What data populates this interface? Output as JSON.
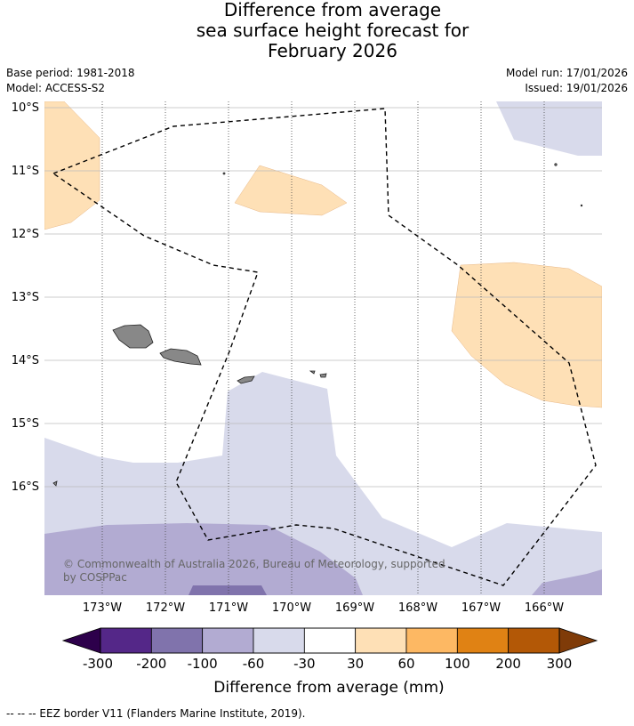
{
  "title": {
    "line1": "Difference from average",
    "line2": "sea surface height forecast for",
    "line3": "February 2026"
  },
  "meta": {
    "base_period": "Base period: 1981-2018",
    "model": "Model: ACCESS-S2",
    "model_run": "Model run: 17/01/2026",
    "issued": "Issued: 19/01/2026"
  },
  "map": {
    "lat_labels": [
      "10°S",
      "11°S",
      "12°S",
      "13°S",
      "14°S",
      "15°S",
      "16°S"
    ],
    "lon_labels": [
      "173°W",
      "172°W",
      "171°W",
      "170°W",
      "169°W",
      "168°W",
      "167°W",
      "166°W"
    ],
    "copyright": "© Commonwealth of Australia 2026, Bureau of Meteorology, supported by COSPPac",
    "copyright_line1": "© Commonwealth of Australia 2026, Bureau of Meteorology, supported",
    "copyright_line2": "by COSPPac"
  },
  "colorbar": {
    "ticks": [
      "-300",
      "-200",
      "-100",
      "-60",
      "-30",
      "30",
      "60",
      "100",
      "200",
      "300"
    ],
    "label": "Difference from average (mm)",
    "colors": {
      "under": "#2d004b",
      "bins": [
        "#542788",
        "#8073ac",
        "#b2abd2",
        "#d8daeb",
        "#ffffff",
        "#fee0b6",
        "#fdb863",
        "#e08214",
        "#b35806"
      ],
      "over": "#7f3b08"
    }
  },
  "legend_note": "--  --  -- EEZ border V11 (Flanders Marine Institute, 2019)."
}
